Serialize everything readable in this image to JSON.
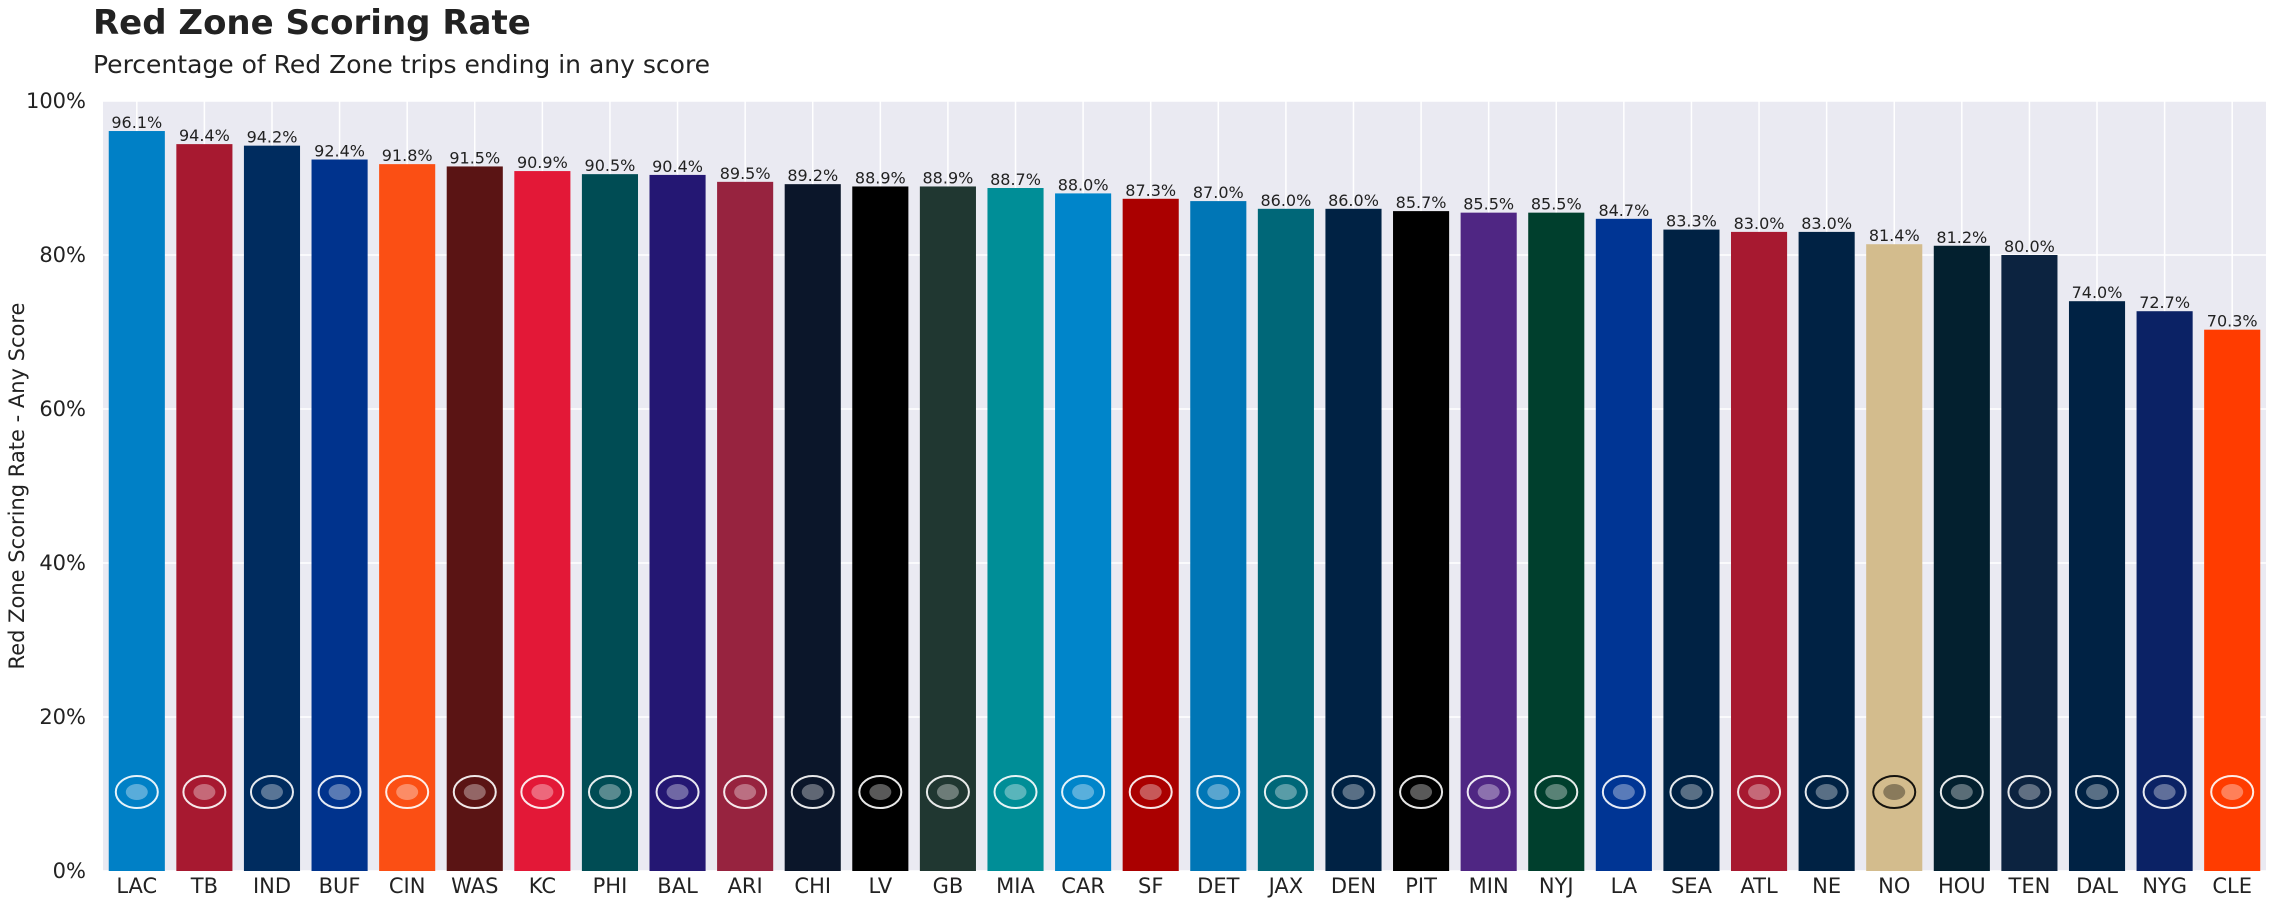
{
  "chart_data": {
    "type": "bar",
    "title": "Red Zone Scoring Rate",
    "subtitle": "Percentage of Red Zone trips ending in any score",
    "xlabel": "",
    "ylabel": "Red Zone Scoring Rate - Any Score",
    "ylim": [
      0,
      100
    ],
    "yticks": [
      "0%",
      "20%",
      "40%",
      "60%",
      "80%",
      "100%"
    ],
    "grid": true,
    "categories": [
      "LAC",
      "TB",
      "IND",
      "BUF",
      "CIN",
      "WAS",
      "KC",
      "PHI",
      "BAL",
      "ARI",
      "CHI",
      "LV",
      "GB",
      "MIA",
      "CAR",
      "SF",
      "DET",
      "JAX",
      "DEN",
      "PIT",
      "MIN",
      "NYJ",
      "LA",
      "SEA",
      "ATL",
      "NE",
      "NO",
      "HOU",
      "TEN",
      "DAL",
      "NYG",
      "CLE"
    ],
    "values": [
      96.1,
      94.4,
      94.2,
      92.4,
      91.8,
      91.5,
      90.9,
      90.5,
      90.4,
      89.5,
      89.2,
      88.9,
      88.9,
      88.7,
      88.0,
      87.3,
      87.0,
      86.0,
      86.0,
      85.7,
      85.5,
      85.5,
      84.7,
      83.3,
      83.0,
      83.0,
      81.4,
      81.2,
      80.0,
      74.0,
      72.7,
      70.3
    ],
    "value_labels": [
      "96.1%",
      "94.4%",
      "94.2%",
      "92.4%",
      "91.8%",
      "91.5%",
      "90.9%",
      "90.5%",
      "90.4%",
      "89.5%",
      "89.2%",
      "88.9%",
      "88.9%",
      "88.7%",
      "88.0%",
      "87.3%",
      "87.0%",
      "86.0%",
      "86.0%",
      "85.7%",
      "85.5%",
      "85.5%",
      "84.7%",
      "83.3%",
      "83.0%",
      "83.0%",
      "81.4%",
      "81.2%",
      "80.0%",
      "74.0%",
      "72.7%",
      "70.3%"
    ],
    "colors": [
      "#0080C6",
      "#A71930",
      "#002C5F",
      "#00338D",
      "#FB4F14",
      "#5A1414",
      "#E31837",
      "#004C54",
      "#241773",
      "#97233F",
      "#0B162A",
      "#000000",
      "#203731",
      "#008E97",
      "#0085CA",
      "#AA0000",
      "#0076B6",
      "#006778",
      "#002244",
      "#000000",
      "#4F2683",
      "#003F2D",
      "#003594",
      "#002244",
      "#A71930",
      "#002244",
      "#D3BC8D",
      "#03202F",
      "#0C2340",
      "#002244",
      "#0B2265",
      "#FF3C00"
    ],
    "logo_icons": [
      "chargers-bolt-icon",
      "buccaneers-flag-icon",
      "colts-horseshoe-icon",
      "bills-buffalo-icon",
      "bengals-stripes-icon",
      "commanders-w-icon",
      "chiefs-arrowhead-icon",
      "eagles-head-icon",
      "ravens-head-icon",
      "cardinals-head-icon",
      "bears-head-icon",
      "raiders-shield-icon",
      "packers-g-icon",
      "dolphins-icon",
      "panthers-head-icon",
      "49ers-oval-icon",
      "lions-icon",
      "jaguars-head-icon",
      "broncos-head-icon",
      "steelers-circle-icon",
      "vikings-head-icon",
      "jets-wordmark-icon",
      "rams-horn-icon",
      "seahawks-head-icon",
      "falcons-icon",
      "patriots-head-icon",
      "saints-fleur-icon",
      "texans-bull-icon",
      "titans-circle-icon",
      "cowboys-star-icon",
      "giants-ny-icon",
      "browns-dog-icon"
    ]
  }
}
